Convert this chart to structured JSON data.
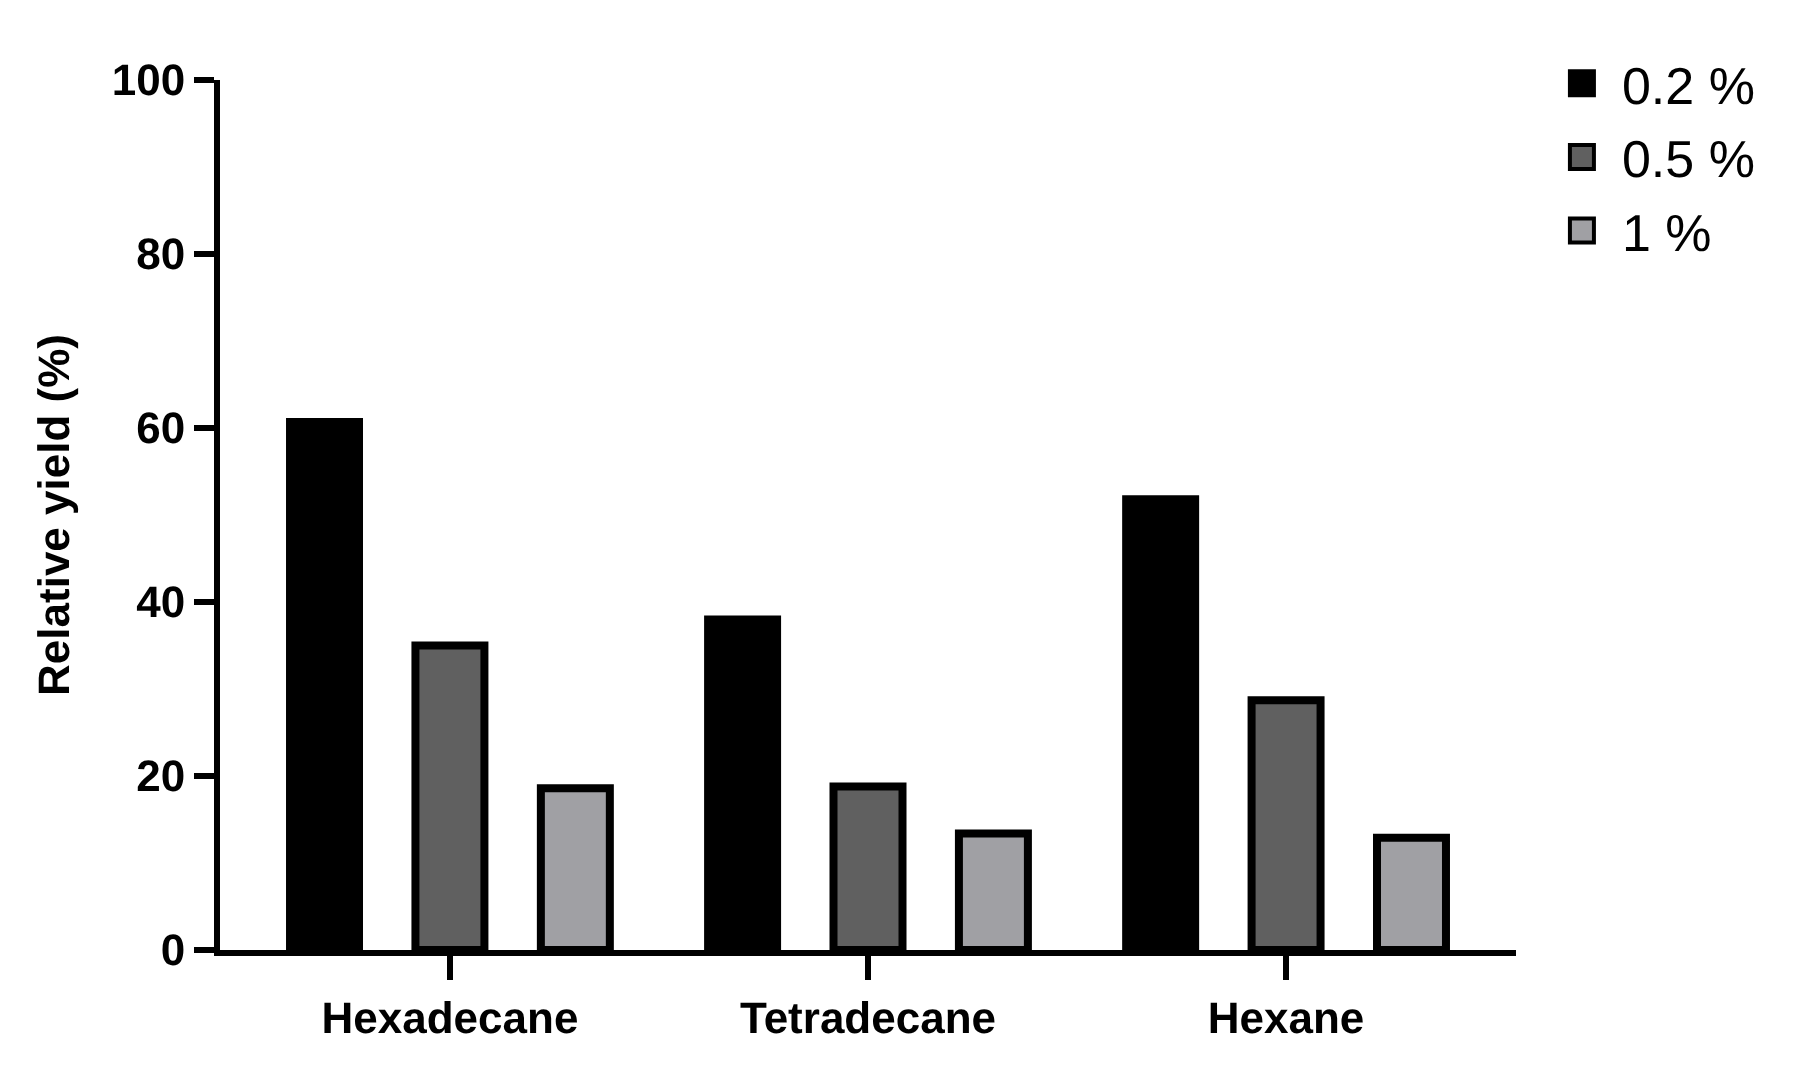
{
  "chart_data": {
    "type": "bar",
    "ylabel": "Relative yield (%)",
    "categories": [
      "Hexadecane",
      "Tetradecane",
      "Hexane"
    ],
    "series": [
      {
        "name": "0.2 %",
        "color": "#000000",
        "values": [
          60.7,
          38.0,
          51.8
        ]
      },
      {
        "name": "0.5 %",
        "color": "#606060",
        "values": [
          35.0,
          18.8,
          28.7
        ]
      },
      {
        "name": "1 %",
        "color": "#a0a0a4",
        "values": [
          18.6,
          13.4,
          12.9
        ]
      }
    ],
    "ylim": [
      0,
      100
    ],
    "yticks": [
      0,
      20,
      40,
      60,
      80,
      100
    ],
    "legend": "top right"
  }
}
